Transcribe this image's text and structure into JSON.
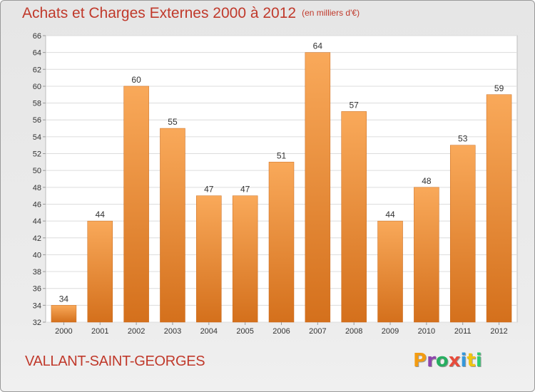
{
  "chart_data": {
    "type": "bar",
    "title": "Achats et Charges Externes 2000 à 2012",
    "subtitle": "(en milliers d'€)",
    "categories": [
      "2000",
      "2001",
      "2002",
      "2003",
      "2004",
      "2005",
      "2006",
      "2007",
      "2008",
      "2009",
      "2010",
      "2011",
      "2012"
    ],
    "values": [
      34,
      44,
      60,
      55,
      47,
      47,
      51,
      64,
      57,
      44,
      48,
      53,
      59
    ],
    "ylim": [
      32,
      66
    ],
    "yticks": [
      32,
      34,
      36,
      38,
      40,
      42,
      44,
      46,
      48,
      50,
      52,
      54,
      56,
      58,
      60,
      62,
      64,
      66
    ],
    "grid": true,
    "bar_color_top": "#f9a95a",
    "bar_color_bottom": "#d4701c"
  },
  "commune": "VALLANT-SAINT-GEORGES",
  "logo": {
    "text": "Proxiti",
    "letters": [
      {
        "ch": "P",
        "color": "#f39c12"
      },
      {
        "ch": "r",
        "color": "#8e44ad"
      },
      {
        "ch": "o",
        "color": "#27ae60"
      },
      {
        "ch": "x",
        "color": "#e74c3c"
      },
      {
        "ch": "i",
        "color": "#3498db"
      },
      {
        "ch": "t",
        "color": "#f1c40f"
      },
      {
        "ch": "i",
        "color": "#2ecc71"
      }
    ]
  }
}
